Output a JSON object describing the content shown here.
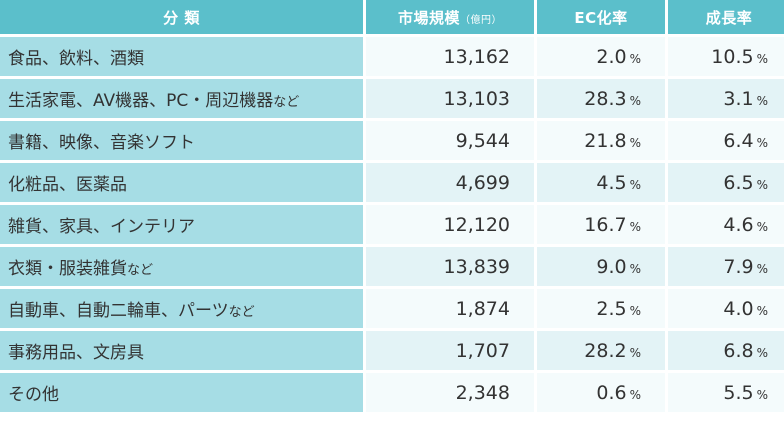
{
  "header": {
    "category": "分 類",
    "market_size": "市場規模",
    "market_size_unit": "（億円）",
    "ec_rate": "EC化率",
    "growth_rate": "成長率"
  },
  "percent_sign": "%",
  "rows": [
    {
      "category": "食品、飲料、酒類",
      "category_suffix": "",
      "market_size": "13,162",
      "ec_rate": "2.0",
      "growth_rate": "10.5"
    },
    {
      "category": "生活家電、AV機器、PC・周辺機器",
      "category_suffix": "など",
      "market_size": "13,103",
      "ec_rate": "28.3",
      "growth_rate": "3.1"
    },
    {
      "category": "書籍、映像、音楽ソフト",
      "category_suffix": "",
      "market_size": "9,544",
      "ec_rate": "21.8",
      "growth_rate": "6.4"
    },
    {
      "category": "化粧品、医薬品",
      "category_suffix": "",
      "market_size": "4,699",
      "ec_rate": "4.5",
      "growth_rate": "6.5"
    },
    {
      "category": "雑貨、家具、インテリア",
      "category_suffix": "",
      "market_size": "12,120",
      "ec_rate": "16.7",
      "growth_rate": "4.6"
    },
    {
      "category": "衣類・服装雑貨",
      "category_suffix": "など",
      "market_size": "13,839",
      "ec_rate": "9.0",
      "growth_rate": "7.9"
    },
    {
      "category": "自動車、自動二輪車、パーツ",
      "category_suffix": "など",
      "market_size": "1,874",
      "ec_rate": "2.5",
      "growth_rate": "4.0"
    },
    {
      "category": "事務用品、文房具",
      "category_suffix": "",
      "market_size": "1,707",
      "ec_rate": "28.2",
      "growth_rate": "6.8"
    },
    {
      "category": "その他",
      "category_suffix": "",
      "market_size": "2,348",
      "ec_rate": "0.6",
      "growth_rate": "5.5"
    }
  ]
}
